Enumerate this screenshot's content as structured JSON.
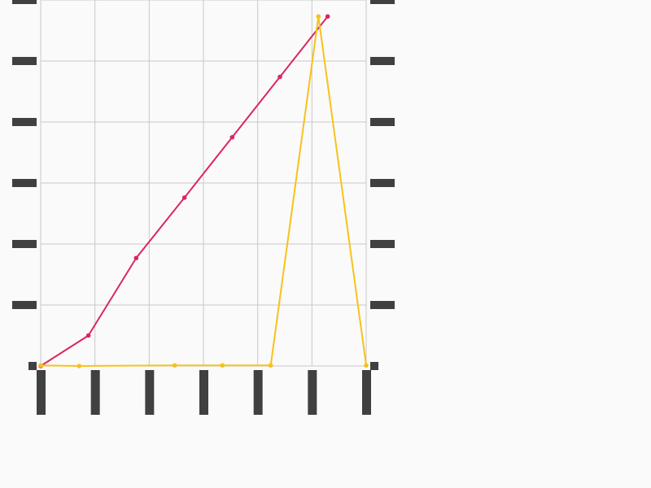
{
  "chart_data": {
    "type": "line",
    "title": "",
    "xlabel": "",
    "ylabel": "",
    "grid": true,
    "xlim": [
      0,
      6
    ],
    "ylim": [
      0,
      6
    ],
    "series": [
      {
        "color": "#dc2660",
        "x": [
          0,
          0.88,
          1.76,
          2.65,
          3.53,
          4.41,
          5.29
        ],
        "y": [
          0,
          0.5,
          1.77,
          2.76,
          3.75,
          4.74,
          5.73
        ]
      },
      {
        "color": "#f7c21a",
        "x": [
          0,
          0.71,
          2.47,
          3.35,
          4.24,
          5.12,
          6.0
        ],
        "y": [
          0.01,
          0.0,
          0.01,
          0.01,
          0.01,
          5.73,
          0.01
        ]
      }
    ]
  },
  "colors": {
    "grid": "#c8c8c8",
    "tick_marker": "#404040",
    "background": "#fafafa"
  }
}
